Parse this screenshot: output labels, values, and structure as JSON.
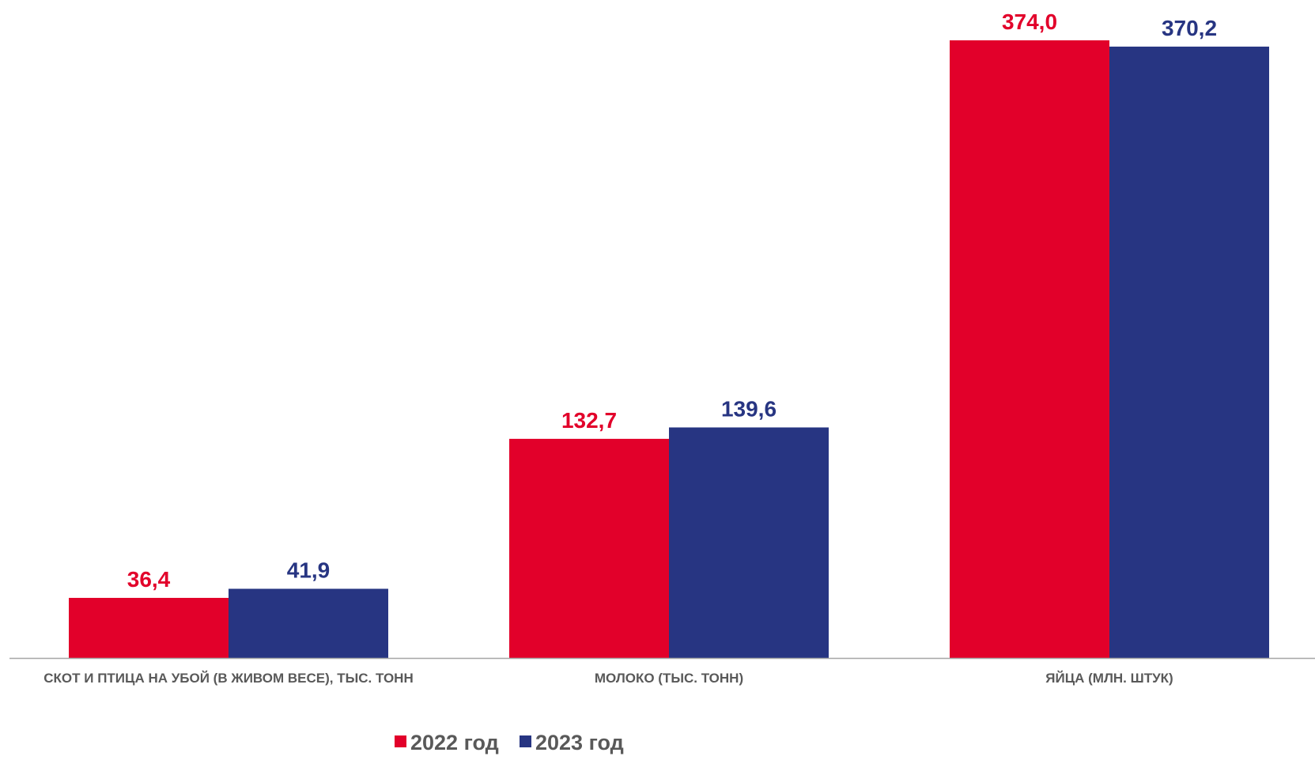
{
  "chart_data": {
    "type": "bar",
    "title": "",
    "xlabel": "",
    "ylabel": "",
    "categories": [
      "СКОТ И ПТИЦА НА УБОЙ (В ЖИВОМ ВЕСЕ), ТЫС. ТОНН",
      "МОЛОКО (ТЫС. ТОНН)",
      "ЯЙЦА (МЛН. ШТУК)"
    ],
    "series": [
      {
        "name": "2022 год",
        "color": "#E2002A",
        "values": [
          36.4,
          132.7,
          374.0
        ],
        "labels": [
          "36,4",
          "132,7",
          "374,0"
        ]
      },
      {
        "name": "2023 год",
        "color": "#273582",
        "values": [
          41.9,
          139.6,
          370.2
        ],
        "labels": [
          "41,9",
          "139,6",
          "370,2"
        ]
      }
    ],
    "ylim": [
      0,
      374
    ],
    "grid": false,
    "legend_position": "bottom",
    "axis_color": "#A6A6A6"
  }
}
